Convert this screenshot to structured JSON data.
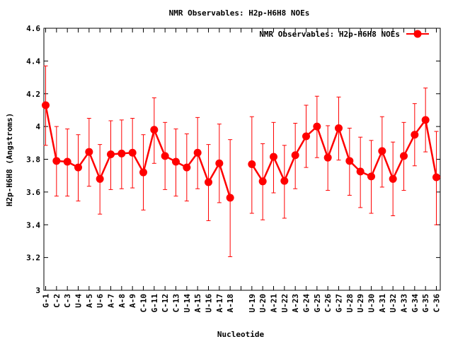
{
  "chart_data": {
    "type": "line",
    "title": "NMR Observables: H2p-H6H8 NOEs",
    "xlabel": "Nucleotide",
    "ylabel": "H2p-H6H8 (Angstroms)",
    "ylim": [
      3,
      4.6
    ],
    "yticks": [
      "3",
      "3.2",
      "3.4",
      "3.6",
      "3.8",
      "4",
      "4.2",
      "4.4",
      "4.6"
    ],
    "legend_position": "top-right",
    "grid": false,
    "line_color": "#ff0000",
    "categories": [
      "G-1",
      "C-2",
      "C-3",
      "U-4",
      "A-5",
      "U-6",
      "A-7",
      "A-8",
      "A-9",
      "C-10",
      "G-11",
      "C-12",
      "C-13",
      "U-14",
      "A-15",
      "U-16",
      "A-17",
      "A-18",
      "",
      "U-19",
      "U-20",
      "A-21",
      "U-22",
      "A-23",
      "G-24",
      "G-25",
      "C-26",
      "G-27",
      "U-28",
      "U-29",
      "U-30",
      "A-31",
      "U-32",
      "A-33",
      "G-34",
      "G-35",
      "C-36"
    ],
    "series": [
      {
        "name": "NMR Observables: H2p-H6H8 NOEs",
        "values": [
          4.13,
          3.79,
          3.785,
          3.75,
          3.845,
          3.68,
          3.83,
          3.835,
          3.84,
          3.72,
          3.98,
          3.82,
          3.785,
          3.75,
          3.84,
          3.66,
          3.775,
          3.565,
          null,
          3.77,
          3.665,
          3.815,
          3.668,
          3.825,
          3.94,
          4.0,
          3.81,
          3.99,
          3.79,
          3.725,
          3.695,
          3.85,
          3.68,
          3.82,
          3.95,
          4.04,
          3.69
        ],
        "err_low": [
          3.885,
          3.575,
          3.575,
          3.545,
          3.635,
          3.465,
          3.615,
          3.62,
          3.625,
          3.49,
          3.775,
          3.615,
          3.575,
          3.545,
          3.62,
          3.425,
          3.535,
          3.205,
          null,
          3.47,
          3.43,
          3.595,
          3.44,
          3.62,
          3.75,
          3.81,
          3.61,
          3.795,
          3.58,
          3.505,
          3.47,
          3.63,
          3.455,
          3.61,
          3.76,
          3.845,
          3.4
        ],
        "err_high": [
          4.37,
          4.0,
          3.985,
          3.95,
          4.05,
          3.89,
          4.035,
          4.04,
          4.05,
          3.95,
          4.175,
          4.025,
          3.985,
          3.955,
          4.055,
          3.89,
          4.015,
          3.92,
          null,
          4.06,
          3.895,
          4.025,
          3.885,
          4.02,
          4.13,
          4.185,
          4.005,
          4.18,
          3.99,
          3.935,
          3.915,
          4.06,
          3.905,
          4.025,
          4.14,
          4.235,
          3.97
        ]
      }
    ]
  }
}
